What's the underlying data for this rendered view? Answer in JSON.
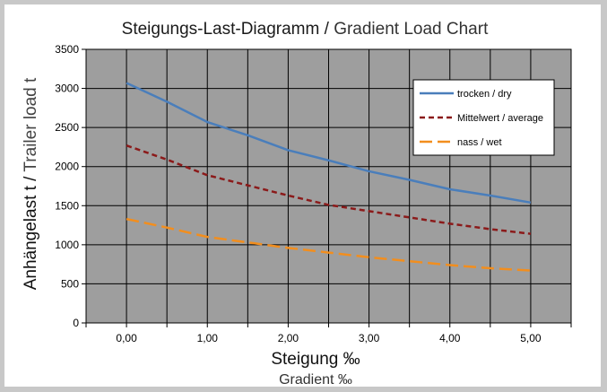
{
  "chart_data": {
    "type": "line",
    "title": "Steigungs-Last-Diagramm",
    "title_sep": " / ",
    "subtitle": "Gradient Load Chart",
    "xlabel": "Steigung ‰",
    "xlabel_sub": "Gradient ‰",
    "ylabel": "Anhängelast t",
    "ylabel_sep": " / ",
    "ylabel_sub": "Trailer load t",
    "xlim": [
      -0.5,
      5.5
    ],
    "ylim": [
      0,
      3500
    ],
    "x_ticks": [
      {
        "value": 0,
        "label": "0,00"
      },
      {
        "value": 1,
        "label": "1,00"
      },
      {
        "value": 2,
        "label": "2,00"
      },
      {
        "value": 3,
        "label": "3,00"
      },
      {
        "value": 4,
        "label": "4,00"
      },
      {
        "value": 5,
        "label": "5,00"
      }
    ],
    "y_ticks": [
      0,
      500,
      1000,
      1500,
      2000,
      2500,
      3000,
      3500
    ],
    "grid": true,
    "plot_background": "#9e9e9e",
    "legend_position": "top-right",
    "x": [
      0,
      0.5,
      1,
      1.5,
      2,
      2.5,
      3,
      3.5,
      4,
      4.5,
      5
    ],
    "series": [
      {
        "name": "trocken / dry",
        "color": "#4a7ebb",
        "dash": "solid",
        "values": [
          3070,
          2830,
          2570,
          2400,
          2210,
          2080,
          1940,
          1830,
          1710,
          1630,
          1540
        ]
      },
      {
        "name": "Mittelwert / average",
        "color": "#8b1a1a",
        "dash": "dashed",
        "values": [
          2270,
          2090,
          1890,
          1760,
          1630,
          1510,
          1430,
          1350,
          1270,
          1200,
          1140
        ]
      },
      {
        "name": "nass / wet",
        "color": "#f28e1e",
        "dash": "longdash",
        "values": [
          1330,
          1220,
          1100,
          1030,
          960,
          900,
          840,
          790,
          740,
          700,
          670
        ]
      }
    ]
  }
}
